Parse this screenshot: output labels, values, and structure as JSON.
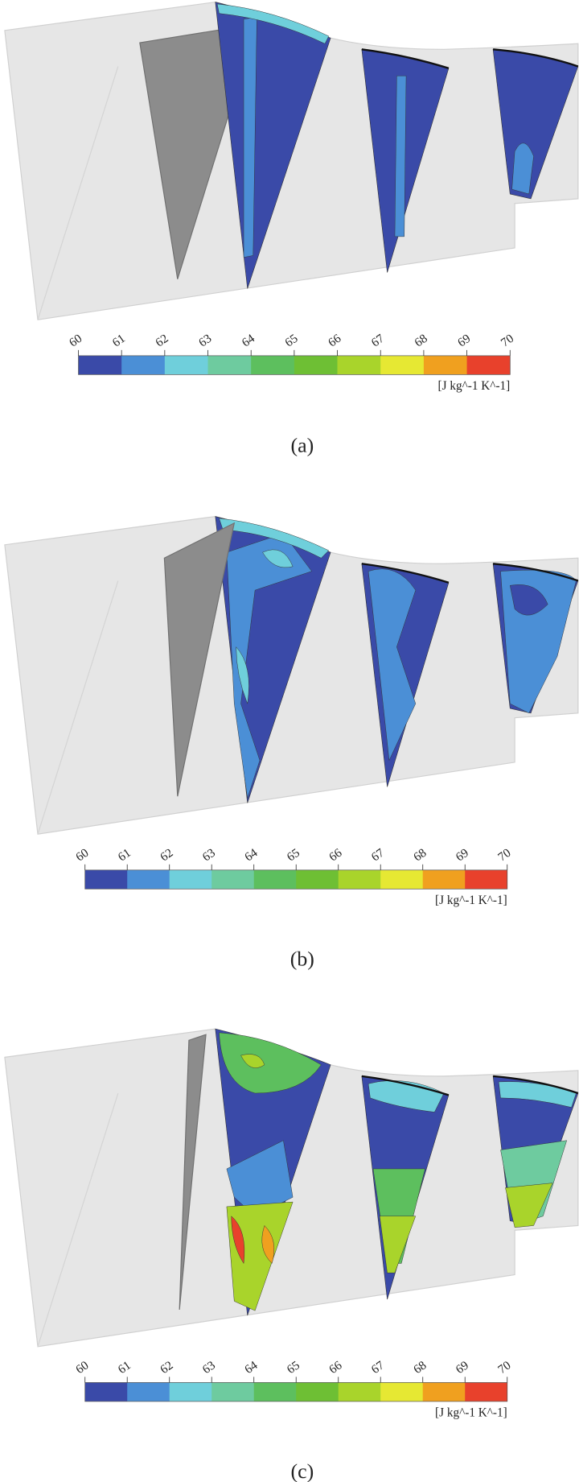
{
  "panels": [
    {
      "caption": "(a)",
      "colorbar": {
        "ticks": [
          60,
          61,
          62,
          63,
          64,
          65,
          66,
          67,
          68,
          69,
          70
        ],
        "unit": "[J kg^-1 K^-1]",
        "colors": [
          "#3a4aa8",
          "#4b8fd6",
          "#6fcfdb",
          "#6ecb9f",
          "#5dbf5e",
          "#6ebf34",
          "#a9d42b",
          "#e6e833",
          "#f0a01f",
          "#e8412c"
        ]
      }
    },
    {
      "caption": "(b)",
      "colorbar": {
        "ticks": [
          60,
          61,
          62,
          63,
          64,
          65,
          66,
          67,
          68,
          69,
          70
        ],
        "unit": "[J kg^-1 K^-1]",
        "colors": [
          "#3a4aa8",
          "#4b8fd6",
          "#6fcfdb",
          "#6ecb9f",
          "#5dbf5e",
          "#6ebf34",
          "#a9d42b",
          "#e6e833",
          "#f0a01f",
          "#e8412c"
        ]
      }
    },
    {
      "caption": "(c)",
      "colorbar": {
        "ticks": [
          60,
          61,
          62,
          63,
          64,
          65,
          66,
          67,
          68,
          69,
          70
        ],
        "unit": "[J kg^-1 K^-1]",
        "colors": [
          "#3a4aa8",
          "#4b8fd6",
          "#6fcfdb",
          "#6ecb9f",
          "#5dbf5e",
          "#6ebf34",
          "#a9d42b",
          "#e6e833",
          "#f0a01f",
          "#e8412c"
        ]
      }
    }
  ]
}
